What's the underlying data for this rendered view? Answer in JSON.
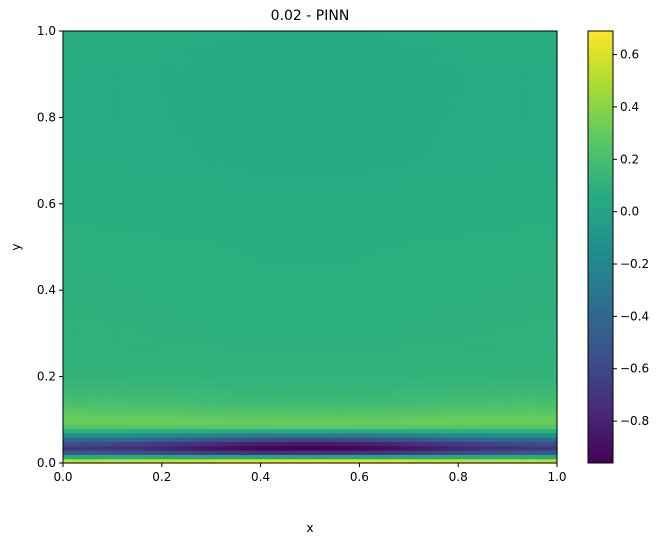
{
  "chart_data": {
    "type": "heatmap",
    "title": "0.02 - PINN",
    "xlabel": "x",
    "ylabel": "y",
    "xlim": [
      0.0,
      1.0
    ],
    "ylim": [
      0.0,
      1.0
    ],
    "x_ticks": [
      0.0,
      0.2,
      0.4,
      0.6,
      0.8,
      1.0
    ],
    "x_tick_labels": [
      "0.0",
      "0.2",
      "0.4",
      "0.6",
      "0.8",
      "1.0"
    ],
    "y_ticks": [
      0.0,
      0.2,
      0.4,
      0.6,
      0.8,
      1.0
    ],
    "y_tick_labels": [
      "0.0",
      "0.2",
      "0.4",
      "0.6",
      "0.8",
      "1.0"
    ],
    "colormap": "viridis",
    "colorbar": {
      "vmin": -0.96,
      "vmax": 0.69,
      "ticks": [
        0.6,
        0.4,
        0.2,
        0.0,
        -0.2,
        -0.4,
        -0.6,
        -0.8
      ],
      "tick_labels": [
        "0.6",
        "0.4",
        "0.2",
        "0.0",
        "−0.2",
        "−0.4",
        "−0.6",
        "−0.8"
      ]
    },
    "profile_along_y": {
      "y": [
        0.0,
        0.01,
        0.02,
        0.03,
        0.035,
        0.04,
        0.05,
        0.06,
        0.07,
        0.08,
        0.09,
        0.1,
        0.12,
        0.15,
        0.2,
        0.3,
        0.5,
        0.7,
        0.9,
        1.0
      ],
      "value_at_center_x": [
        0.69,
        0.55,
        -0.55,
        -0.92,
        -0.96,
        -0.93,
        -0.75,
        -0.45,
        -0.1,
        0.2,
        0.32,
        0.3,
        0.22,
        0.15,
        0.11,
        0.09,
        0.08,
        0.05,
        0.04,
        0.05
      ],
      "value_at_edges_x": [
        0.6,
        0.45,
        -0.35,
        -0.65,
        -0.7,
        -0.66,
        -0.5,
        -0.25,
        0.0,
        0.2,
        0.3,
        0.32,
        0.26,
        0.18,
        0.12,
        0.1,
        0.09,
        0.06,
        0.06,
        0.08
      ]
    }
  }
}
